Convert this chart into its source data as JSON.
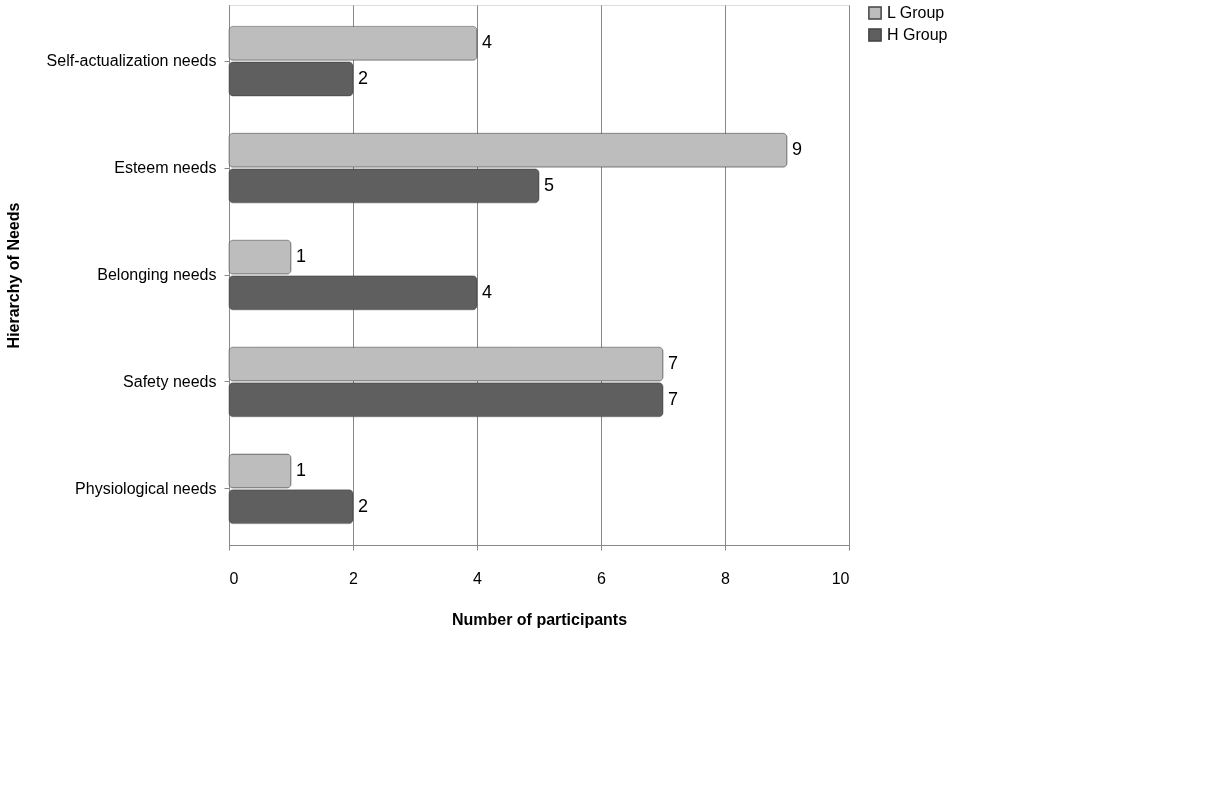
{
  "chart_data": {
    "type": "bar",
    "orientation": "horizontal",
    "xlabel": "Number of participants",
    "ylabel": "Hierarchy of Needs",
    "categories": [
      "Self-actualization needs",
      "Esteem needs",
      "Belonging needs",
      "Safety needs",
      "Physiological  needs"
    ],
    "series": [
      {
        "name": "L Group",
        "color": "#bdbdbd",
        "values": [
          4,
          9,
          1,
          7,
          1
        ]
      },
      {
        "name": "H Group",
        "color": "#5f5f5f",
        "values": [
          2,
          5,
          4,
          7,
          2
        ]
      }
    ],
    "xlim": [
      0,
      10
    ],
    "xticks": [
      0,
      2,
      4,
      6,
      8,
      10
    ],
    "grid": "x",
    "legend": "right",
    "data_labels": true
  }
}
